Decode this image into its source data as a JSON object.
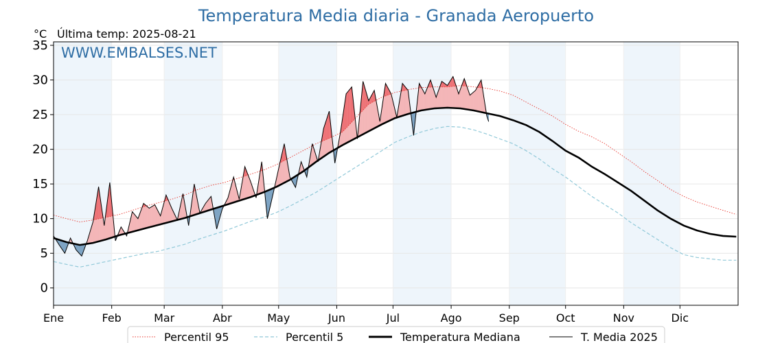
{
  "chart_data": {
    "type": "line",
    "title": "Temperatura Media diaria - Granada Aeropuerto",
    "unit": "°C",
    "updated_label": "Última temp: 2025-08-21",
    "watermark": "WWW.EMBALSES.NET",
    "ylim": [
      -2.5,
      35.5
    ],
    "yticks": [
      0,
      5,
      10,
      15,
      20,
      25,
      30,
      35
    ],
    "xlim": [
      1,
      366
    ],
    "months": [
      {
        "label": "Ene",
        "day": 1
      },
      {
        "label": "Feb",
        "day": 32
      },
      {
        "label": "Mar",
        "day": 60
      },
      {
        "label": "Abr",
        "day": 91
      },
      {
        "label": "May",
        "day": 121
      },
      {
        "label": "Jun",
        "day": 152
      },
      {
        "label": "Jul",
        "day": 182
      },
      {
        "label": "Ago",
        "day": 213
      },
      {
        "label": "Sep",
        "day": 244
      },
      {
        "label": "Oct",
        "day": 274
      },
      {
        "label": "Nov",
        "day": 305
      },
      {
        "label": "Dic",
        "day": 335
      }
    ],
    "grid": true,
    "legend_position": "bottom-center",
    "colors": {
      "p95": "#e8332a",
      "p5": "#8fc8d8",
      "median": "#000000",
      "current": "#000000",
      "above_fill": "#f4b6b8",
      "above_p95_fill": "#ee6f73",
      "below_fill": "#7ea4c4",
      "month_shade": "#eef5fb"
    },
    "series": [
      {
        "name": "Percentil 95",
        "style": "dotted",
        "x": [
          1,
          8,
          15,
          22,
          29,
          36,
          43,
          50,
          57,
          64,
          71,
          78,
          85,
          92,
          99,
          106,
          113,
          120,
          127,
          134,
          141,
          148,
          155,
          162,
          169,
          176,
          183,
          190,
          197,
          204,
          211,
          218,
          225,
          232,
          239,
          246,
          253,
          260,
          267,
          274,
          281,
          288,
          295,
          302,
          309,
          316,
          323,
          330,
          337,
          344,
          351,
          358,
          365
        ],
        "y": [
          10.5,
          10.0,
          9.5,
          9.8,
          10.2,
          10.6,
          11.2,
          11.8,
          12.3,
          12.8,
          13.4,
          14.2,
          14.8,
          15.2,
          15.8,
          16.4,
          17.0,
          17.8,
          18.8,
          19.8,
          20.8,
          21.6,
          22.5,
          24.5,
          26.5,
          27.5,
          28.2,
          28.6,
          28.9,
          29.0,
          29.0,
          29.2,
          29.0,
          28.8,
          28.4,
          27.8,
          26.8,
          25.8,
          24.8,
          23.6,
          22.6,
          21.8,
          20.8,
          19.5,
          18.2,
          16.8,
          15.5,
          14.2,
          13.2,
          12.4,
          11.8,
          11.2,
          10.6
        ]
      },
      {
        "name": "Percentil 5",
        "style": "dashed",
        "x": [
          1,
          8,
          15,
          22,
          29,
          36,
          43,
          50,
          57,
          64,
          71,
          78,
          85,
          92,
          99,
          106,
          113,
          120,
          127,
          134,
          141,
          148,
          155,
          162,
          169,
          176,
          183,
          190,
          197,
          204,
          211,
          218,
          225,
          232,
          239,
          246,
          253,
          260,
          267,
          274,
          281,
          288,
          295,
          302,
          309,
          316,
          323,
          330,
          337,
          344,
          351,
          358,
          365
        ],
        "y": [
          3.8,
          3.4,
          3.0,
          3.4,
          3.8,
          4.2,
          4.6,
          5.0,
          5.3,
          5.8,
          6.3,
          7.0,
          7.6,
          8.2,
          8.9,
          9.6,
          10.2,
          10.9,
          11.8,
          12.8,
          13.8,
          15.0,
          16.2,
          17.4,
          18.6,
          19.8,
          21.0,
          21.8,
          22.5,
          23.0,
          23.3,
          23.2,
          22.8,
          22.2,
          21.5,
          20.8,
          19.8,
          18.6,
          17.2,
          16.0,
          14.6,
          13.2,
          12.0,
          10.8,
          9.4,
          8.2,
          7.0,
          5.8,
          4.8,
          4.4,
          4.2,
          4.0,
          4.0
        ]
      },
      {
        "name": "Temperatura Mediana",
        "style": "solid-bold",
        "x": [
          1,
          8,
          15,
          22,
          29,
          36,
          43,
          50,
          57,
          64,
          71,
          78,
          85,
          92,
          99,
          106,
          113,
          120,
          127,
          134,
          141,
          148,
          155,
          162,
          169,
          176,
          183,
          190,
          197,
          204,
          211,
          218,
          225,
          232,
          239,
          246,
          253,
          260,
          267,
          274,
          281,
          288,
          295,
          302,
          309,
          316,
          323,
          330,
          337,
          344,
          351,
          358,
          365
        ],
        "y": [
          7.2,
          6.6,
          6.2,
          6.5,
          7.0,
          7.6,
          8.1,
          8.6,
          9.1,
          9.6,
          10.1,
          10.7,
          11.3,
          11.9,
          12.5,
          13.1,
          13.8,
          14.6,
          15.6,
          16.8,
          18.2,
          19.5,
          20.6,
          21.6,
          22.6,
          23.6,
          24.5,
          25.1,
          25.6,
          25.9,
          26.0,
          25.9,
          25.6,
          25.2,
          24.8,
          24.2,
          23.5,
          22.5,
          21.2,
          19.8,
          18.8,
          17.5,
          16.4,
          15.2,
          14.0,
          12.6,
          11.2,
          10.0,
          9.0,
          8.3,
          7.8,
          7.5,
          7.4
        ]
      },
      {
        "name": "T. Media 2025",
        "style": "solid-thin",
        "x": [
          1,
          4,
          7,
          10,
          13,
          16,
          19,
          22,
          25,
          28,
          31,
          34,
          37,
          40,
          43,
          46,
          49,
          52,
          55,
          58,
          61,
          64,
          67,
          70,
          73,
          76,
          79,
          82,
          85,
          88,
          91,
          94,
          97,
          100,
          103,
          106,
          109,
          112,
          115,
          118,
          121,
          124,
          127,
          130,
          133,
          136,
          139,
          142,
          145,
          148,
          151,
          154,
          157,
          160,
          163,
          166,
          169,
          172,
          175,
          178,
          181,
          184,
          187,
          190,
          193,
          196,
          199,
          202,
          205,
          208,
          211,
          214,
          217,
          220,
          223,
          226,
          229,
          232,
          233
        ],
        "y": [
          7.5,
          6.2,
          5.0,
          7.2,
          5.5,
          4.6,
          6.8,
          9.5,
          14.6,
          9.0,
          15.2,
          6.8,
          8.8,
          7.5,
          11.0,
          10.0,
          12.2,
          11.5,
          12.0,
          10.4,
          13.4,
          11.5,
          9.8,
          13.6,
          9.0,
          15.0,
          10.8,
          12.2,
          13.2,
          8.5,
          11.4,
          13.0,
          16.0,
          12.8,
          17.5,
          15.4,
          13.0,
          18.2,
          10.0,
          13.5,
          17.2,
          20.8,
          16.0,
          14.5,
          18.2,
          16.0,
          20.8,
          18.2,
          23.0,
          25.5,
          18.0,
          22.5,
          28.0,
          29.0,
          21.5,
          29.8,
          27.0,
          28.5,
          24.0,
          29.5,
          28.0,
          24.6,
          29.5,
          28.5,
          22.0,
          29.5,
          28.0,
          30.0,
          27.5,
          29.8,
          29.2,
          30.5,
          28.0,
          30.2,
          27.8,
          28.5,
          30.0,
          24.8,
          24.0
        ]
      }
    ]
  }
}
